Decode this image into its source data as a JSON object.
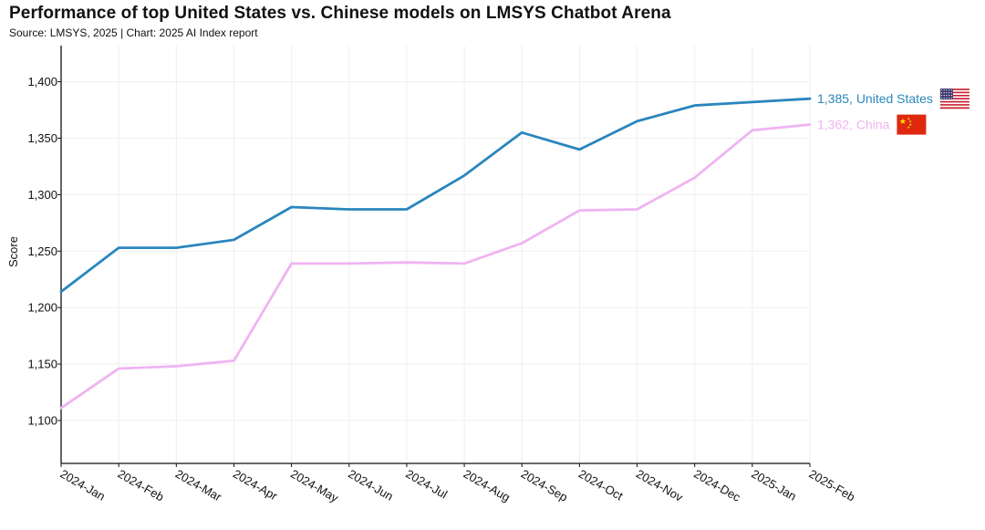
{
  "header": {
    "title": "Performance of top United States vs. Chinese models on LMSYS Chatbot Arena",
    "subtitle": "Source: LMSYS, 2025 | Chart: 2025 AI Index report"
  },
  "chart_data": {
    "type": "line",
    "title": "Performance of top United States vs. Chinese models on LMSYS Chatbot Arena",
    "xlabel": "",
    "ylabel": "Score",
    "x": [
      "2024-Jan",
      "2024-Feb",
      "2024-Mar",
      "2024-Apr",
      "2024-May",
      "2024-Jun",
      "2024-Jul",
      "2024-Aug",
      "2024-Sep",
      "2024-Oct",
      "2024-Nov",
      "2024-Dec",
      "2025-Jan",
      "2025-Feb"
    ],
    "ylim": [
      1062,
      1432
    ],
    "yticks": [
      1100,
      1150,
      1200,
      1250,
      1300,
      1350,
      1400
    ],
    "ytick_labels": [
      "1,100",
      "1,150",
      "1,200",
      "1,250",
      "1,300",
      "1,350",
      "1,400"
    ],
    "grid": true,
    "series": [
      {
        "name": "United States",
        "color": "#2a86bd",
        "values": [
          1214,
          1253,
          1253,
          1260,
          1289,
          1287,
          1287,
          1317,
          1355,
          1340,
          1365,
          1379,
          1382,
          1385
        ],
        "end_label": "1,385, United States",
        "flag_icon": "us-flag-icon"
      },
      {
        "name": "China",
        "color": "#efb4f2",
        "values": [
          1111,
          1146,
          1148,
          1153,
          1239,
          1239,
          1240,
          1239,
          1257,
          1286,
          1287,
          1315,
          1357,
          1362
        ],
        "end_label": "1,362, China",
        "flag_icon": "china-flag-icon"
      }
    ]
  }
}
